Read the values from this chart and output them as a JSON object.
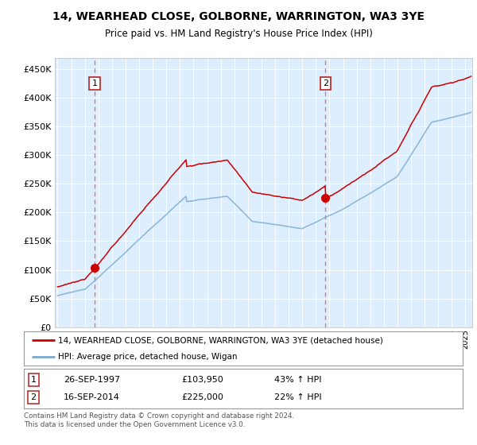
{
  "title1": "14, WEARHEAD CLOSE, GOLBORNE, WARRINGTON, WA3 3YE",
  "title2": "Price paid vs. HM Land Registry's House Price Index (HPI)",
  "red_color": "#cc0000",
  "blue_color": "#7aaad0",
  "dashed_color": "#e06060",
  "sale1_year": 1997.73,
  "sale1_price": 103950,
  "sale2_year": 2014.71,
  "sale2_price": 225000,
  "legend_line1": "14, WEARHEAD CLOSE, GOLBORNE, WARRINGTON, WA3 3YE (detached house)",
  "legend_line2": "HPI: Average price, detached house, Wigan",
  "sale1_label": "1",
  "sale1_date": "26-SEP-1997",
  "sale1_amount": "£103,950",
  "sale1_hpi": "43% ↑ HPI",
  "sale2_label": "2",
  "sale2_date": "16-SEP-2014",
  "sale2_amount": "£225,000",
  "sale2_hpi": "22% ↑ HPI",
  "footer": "Contains HM Land Registry data © Crown copyright and database right 2024.\nThis data is licensed under the Open Government Licence v3.0.",
  "ylim": [
    0,
    470000
  ],
  "xlim_start": 1994.8,
  "xlim_end": 2025.5,
  "plot_bg": "#ddeeff"
}
